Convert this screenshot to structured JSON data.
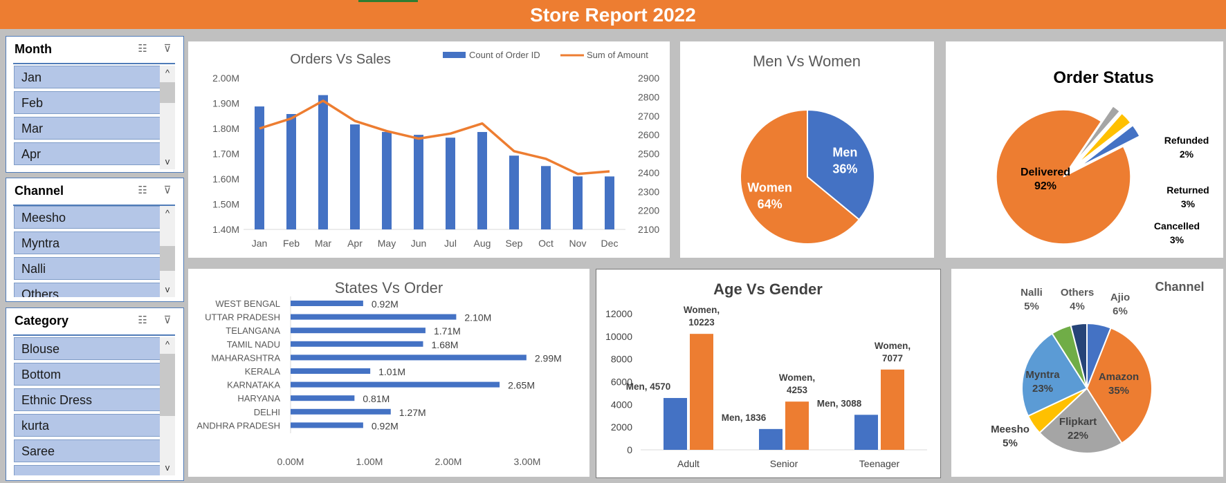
{
  "title": "Store Report 2022",
  "slicers": [
    {
      "title": "Month",
      "items": [
        "Jan",
        "Feb",
        "Mar",
        "Apr"
      ]
    },
    {
      "title": "Channel",
      "items": [
        "Meesho",
        "Myntra",
        "Nalli",
        "Others"
      ]
    },
    {
      "title": "Category",
      "items": [
        "Blouse",
        "Bottom",
        "Ethnic Dress",
        "kurta",
        "Saree"
      ]
    }
  ],
  "chart_data": [
    {
      "type": "bar",
      "title": "Orders Vs Sales",
      "categories": [
        "Jan",
        "Feb",
        "Mar",
        "Apr",
        "May",
        "Jun",
        "Jul",
        "Aug",
        "Sep",
        "Oct",
        "Nov",
        "Dec"
      ],
      "series": [
        {
          "name": "Count of Order ID",
          "type": "bar",
          "axis": "right",
          "values": [
            2750,
            2710,
            2810,
            2655,
            2615,
            2600,
            2585,
            2615,
            2490,
            2435,
            2380,
            2380
          ]
        },
        {
          "name": "Sum of Amount",
          "type": "line",
          "axis": "left",
          "values": [
            1.8,
            1.84,
            1.91,
            1.83,
            1.79,
            1.76,
            1.78,
            1.82,
            1.71,
            1.68,
            1.62,
            1.63
          ]
        }
      ],
      "yticks_left": [
        "2.00M",
        "1.90M",
        "1.80M",
        "1.70M",
        "1.60M",
        "1.50M",
        "1.40M"
      ],
      "yticks_right": [
        "2900",
        "2800",
        "2700",
        "2600",
        "2500",
        "2400",
        "2300",
        "2200",
        "2100"
      ],
      "ylim_left": [
        1.4,
        2.0
      ],
      "ylim_right": [
        2100,
        2900
      ],
      "colors": {
        "bar": "#4472c4",
        "line": "#ed7d31"
      }
    },
    {
      "type": "pie",
      "title": "Men Vs Women",
      "slices": [
        {
          "label": "Men",
          "pct": "36%",
          "value": 36,
          "color": "#4472c4"
        },
        {
          "label": "Women",
          "pct": "64%",
          "value": 64,
          "color": "#ed7d31"
        }
      ]
    },
    {
      "type": "pie",
      "title": "Order Status",
      "slices": [
        {
          "label": "Delivered",
          "pct": "92%",
          "value": 92,
          "color": "#ed7d31"
        },
        {
          "label": "Refunded",
          "pct": "2%",
          "value": 2,
          "color": "#a5a5a5"
        },
        {
          "label": "Returned",
          "pct": "3%",
          "value": 3,
          "color": "#ffc000"
        },
        {
          "label": "Cancelled",
          "pct": "3%",
          "value": 3,
          "color": "#4472c4"
        }
      ]
    },
    {
      "type": "bar",
      "orientation": "horizontal",
      "title": "States Vs Order",
      "categories": [
        "WEST BENGAL",
        "UTTAR PRADESH",
        "TELANGANA",
        "TAMIL NADU",
        "MAHARASHTRA",
        "KERALA",
        "KARNATAKA",
        "HARYANA",
        "DELHI",
        "ANDHRA PRADESH"
      ],
      "values": [
        0.92,
        2.1,
        1.71,
        1.68,
        2.99,
        1.01,
        2.65,
        0.81,
        1.27,
        0.92
      ],
      "data_labels": [
        "0.92M",
        "2.10M",
        "1.71M",
        "1.68M",
        "2.99M",
        "1.01M",
        "2.65M",
        "0.81M",
        "1.27M",
        "0.92M"
      ],
      "xticks": [
        "0.00M",
        "1.00M",
        "2.00M",
        "3.00M"
      ],
      "xlim": [
        0,
        3
      ],
      "color": "#4472c4"
    },
    {
      "type": "bar",
      "title": "Age Vs Gender",
      "categories": [
        "Adult",
        "Senior",
        "Teenager"
      ],
      "series": [
        {
          "name": "Men",
          "values": [
            4570,
            1836,
            3088
          ],
          "labels": [
            "Men, 4570",
            "Men, 1836",
            "Men, 3088"
          ],
          "color": "#4472c4"
        },
        {
          "name": "Women",
          "values": [
            10223,
            4253,
            7077
          ],
          "labels": [
            "Women, 10223",
            "Women, 4253",
            "Women, 7077"
          ],
          "color": "#ed7d31"
        }
      ],
      "yticks": [
        "12000",
        "10000",
        "8000",
        "6000",
        "4000",
        "2000",
        "0"
      ],
      "ylim": [
        0,
        12000
      ]
    },
    {
      "type": "pie",
      "title": "Channel",
      "slices": [
        {
          "label": "Ajio",
          "pct": "6%",
          "value": 6,
          "color": "#4472c4"
        },
        {
          "label": "Amazon",
          "pct": "35%",
          "value": 35,
          "color": "#ed7d31"
        },
        {
          "label": "Flipkart",
          "pct": "22%",
          "value": 22,
          "color": "#a5a5a5"
        },
        {
          "label": "Meesho",
          "pct": "5%",
          "value": 5,
          "color": "#ffc000"
        },
        {
          "label": "Myntra",
          "pct": "23%",
          "value": 23,
          "color": "#5b9bd5"
        },
        {
          "label": "Nalli",
          "pct": "5%",
          "value": 5,
          "color": "#70ad47"
        },
        {
          "label": "Others",
          "pct": "4%",
          "value": 4,
          "color": "#264478"
        }
      ]
    }
  ]
}
